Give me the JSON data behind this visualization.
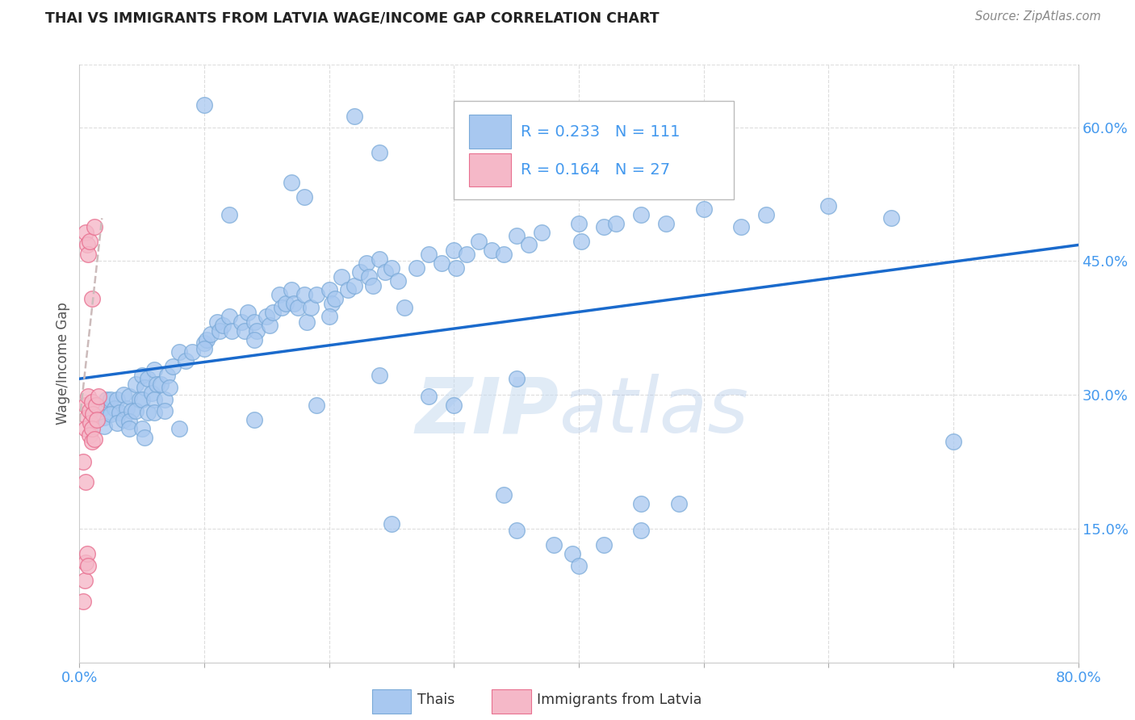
{
  "title": "THAI VS IMMIGRANTS FROM LATVIA WAGE/INCOME GAP CORRELATION CHART",
  "source": "Source: ZipAtlas.com",
  "ylabel": "Wage/Income Gap",
  "xlim": [
    0.0,
    0.8
  ],
  "ylim": [
    0.0,
    0.67
  ],
  "yticks_right": [
    0.15,
    0.3,
    0.45,
    0.6
  ],
  "ytick_right_labels": [
    "15.0%",
    "30.0%",
    "45.0%",
    "60.0%"
  ],
  "blue_color": "#A8C8F0",
  "blue_edge_color": "#7AAAD8",
  "pink_color": "#F5B8C8",
  "pink_edge_color": "#E87090",
  "blue_line_color": "#1A6ACC",
  "pink_line_color": "#CC4466",
  "grid_color": "#DDDDDD",
  "text_color": "#555555",
  "tick_color": "#4499EE",
  "thai_points": [
    [
      0.018,
      0.285
    ],
    [
      0.022,
      0.295
    ],
    [
      0.02,
      0.275
    ],
    [
      0.02,
      0.265
    ],
    [
      0.025,
      0.295
    ],
    [
      0.028,
      0.285
    ],
    [
      0.025,
      0.278
    ],
    [
      0.03,
      0.295
    ],
    [
      0.032,
      0.28
    ],
    [
      0.03,
      0.268
    ],
    [
      0.035,
      0.3
    ],
    [
      0.038,
      0.285
    ],
    [
      0.035,
      0.272
    ],
    [
      0.04,
      0.298
    ],
    [
      0.042,
      0.282
    ],
    [
      0.04,
      0.27
    ],
    [
      0.04,
      0.262
    ],
    [
      0.045,
      0.312
    ],
    [
      0.048,
      0.295
    ],
    [
      0.045,
      0.282
    ],
    [
      0.05,
      0.322
    ],
    [
      0.052,
      0.308
    ],
    [
      0.05,
      0.295
    ],
    [
      0.05,
      0.262
    ],
    [
      0.052,
      0.252
    ],
    [
      0.055,
      0.318
    ],
    [
      0.058,
      0.302
    ],
    [
      0.055,
      0.28
    ],
    [
      0.06,
      0.328
    ],
    [
      0.062,
      0.312
    ],
    [
      0.06,
      0.295
    ],
    [
      0.06,
      0.28
    ],
    [
      0.065,
      0.312
    ],
    [
      0.068,
      0.295
    ],
    [
      0.07,
      0.322
    ],
    [
      0.072,
      0.308
    ],
    [
      0.075,
      0.332
    ],
    [
      0.08,
      0.348
    ],
    [
      0.085,
      0.338
    ],
    [
      0.09,
      0.348
    ],
    [
      0.1,
      0.358
    ],
    [
      0.102,
      0.362
    ],
    [
      0.1,
      0.352
    ],
    [
      0.105,
      0.368
    ],
    [
      0.11,
      0.382
    ],
    [
      0.112,
      0.372
    ],
    [
      0.115,
      0.378
    ],
    [
      0.12,
      0.388
    ],
    [
      0.122,
      0.372
    ],
    [
      0.13,
      0.382
    ],
    [
      0.132,
      0.372
    ],
    [
      0.135,
      0.392
    ],
    [
      0.14,
      0.382
    ],
    [
      0.142,
      0.372
    ],
    [
      0.14,
      0.362
    ],
    [
      0.15,
      0.388
    ],
    [
      0.152,
      0.378
    ],
    [
      0.155,
      0.392
    ],
    [
      0.16,
      0.412
    ],
    [
      0.162,
      0.398
    ],
    [
      0.165,
      0.402
    ],
    [
      0.17,
      0.418
    ],
    [
      0.172,
      0.402
    ],
    [
      0.175,
      0.398
    ],
    [
      0.18,
      0.412
    ],
    [
      0.182,
      0.382
    ],
    [
      0.185,
      0.398
    ],
    [
      0.19,
      0.412
    ],
    [
      0.2,
      0.418
    ],
    [
      0.202,
      0.402
    ],
    [
      0.2,
      0.388
    ],
    [
      0.205,
      0.408
    ],
    [
      0.21,
      0.432
    ],
    [
      0.215,
      0.418
    ],
    [
      0.22,
      0.422
    ],
    [
      0.225,
      0.438
    ],
    [
      0.23,
      0.448
    ],
    [
      0.232,
      0.432
    ],
    [
      0.235,
      0.422
    ],
    [
      0.24,
      0.452
    ],
    [
      0.245,
      0.438
    ],
    [
      0.25,
      0.442
    ],
    [
      0.255,
      0.428
    ],
    [
      0.26,
      0.398
    ],
    [
      0.27,
      0.442
    ],
    [
      0.28,
      0.458
    ],
    [
      0.29,
      0.448
    ],
    [
      0.3,
      0.462
    ],
    [
      0.302,
      0.442
    ],
    [
      0.31,
      0.458
    ],
    [
      0.32,
      0.472
    ],
    [
      0.33,
      0.462
    ],
    [
      0.34,
      0.458
    ],
    [
      0.35,
      0.478
    ],
    [
      0.36,
      0.468
    ],
    [
      0.37,
      0.482
    ],
    [
      0.4,
      0.492
    ],
    [
      0.402,
      0.472
    ],
    [
      0.42,
      0.488
    ],
    [
      0.43,
      0.492
    ],
    [
      0.45,
      0.502
    ],
    [
      0.47,
      0.492
    ],
    [
      0.5,
      0.508
    ],
    [
      0.53,
      0.488
    ],
    [
      0.55,
      0.502
    ],
    [
      0.6,
      0.512
    ],
    [
      0.65,
      0.498
    ],
    [
      0.19,
      0.288
    ],
    [
      0.24,
      0.322
    ],
    [
      0.28,
      0.298
    ],
    [
      0.14,
      0.272
    ],
    [
      0.08,
      0.262
    ],
    [
      0.3,
      0.288
    ],
    [
      0.35,
      0.318
    ],
    [
      0.068,
      0.282
    ],
    [
      0.25,
      0.155
    ],
    [
      0.35,
      0.148
    ],
    [
      0.395,
      0.122
    ],
    [
      0.38,
      0.132
    ],
    [
      0.42,
      0.132
    ],
    [
      0.45,
      0.178
    ],
    [
      0.4,
      0.108
    ],
    [
      0.7,
      0.248
    ],
    [
      0.22,
      0.612
    ],
    [
      0.17,
      0.538
    ],
    [
      0.24,
      0.572
    ],
    [
      0.1,
      0.625
    ],
    [
      0.12,
      0.502
    ],
    [
      0.18,
      0.522
    ],
    [
      0.34,
      0.188
    ],
    [
      0.45,
      0.148
    ],
    [
      0.48,
      0.178
    ]
  ],
  "latvia_points": [
    [
      0.005,
      0.288
    ],
    [
      0.006,
      0.275
    ],
    [
      0.005,
      0.262
    ],
    [
      0.007,
      0.298
    ],
    [
      0.008,
      0.282
    ],
    [
      0.009,
      0.268
    ],
    [
      0.008,
      0.255
    ],
    [
      0.01,
      0.248
    ],
    [
      0.01,
      0.292
    ],
    [
      0.011,
      0.278
    ],
    [
      0.01,
      0.262
    ],
    [
      0.012,
      0.25
    ],
    [
      0.013,
      0.288
    ],
    [
      0.014,
      0.272
    ],
    [
      0.015,
      0.298
    ],
    [
      0.005,
      0.482
    ],
    [
      0.006,
      0.468
    ],
    [
      0.007,
      0.458
    ],
    [
      0.008,
      0.472
    ],
    [
      0.01,
      0.408
    ],
    [
      0.012,
      0.488
    ],
    [
      0.004,
      0.092
    ],
    [
      0.005,
      0.112
    ],
    [
      0.006,
      0.122
    ],
    [
      0.007,
      0.108
    ],
    [
      0.003,
      0.225
    ],
    [
      0.005,
      0.202
    ],
    [
      0.003,
      0.068
    ]
  ],
  "blue_trend_x0": 0.0,
  "blue_trend_y0": 0.318,
  "blue_trend_x1": 0.8,
  "blue_trend_y1": 0.468,
  "pink_trend_x0": 0.0,
  "pink_trend_y0": 0.27,
  "pink_trend_x1": 0.018,
  "pink_trend_y1": 0.498
}
